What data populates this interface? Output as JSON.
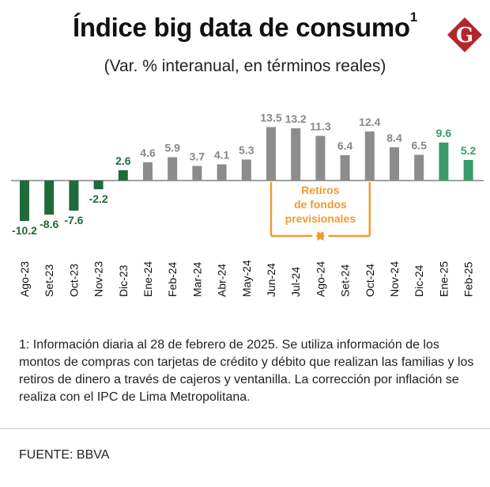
{
  "header": {
    "title": "Índice big data de consumo",
    "title_superscript": "1",
    "subtitle": "(Var. % interanual, en términos reales)",
    "logo_letter": "G"
  },
  "colors": {
    "negative": "#1f6b3a",
    "neutral": "#8c8c8c",
    "highlight": "#3a9a6a",
    "annotation": "#f29a2e",
    "logo": "#b3262d"
  },
  "chart_data": {
    "type": "bar",
    "title": "Índice big data de consumo",
    "subtitle": "(Var. % interanual, en términos reales)",
    "xlabel": "",
    "ylabel": "",
    "ylim": [
      -11,
      14
    ],
    "categories": [
      "Ago-23",
      "Set-23",
      "Oct-23",
      "Nov-23",
      "Dic-23",
      "Ene-24",
      "Feb-24",
      "Mar-24",
      "Abr-24",
      "May-24",
      "Jun-24",
      "Jul-24",
      "Ago-24",
      "Set-24",
      "Oct-24",
      "Nov-24",
      "Dic-24",
      "Ene-25",
      "Feb-25"
    ],
    "values": [
      -10.2,
      -8.6,
      -7.6,
      -2.2,
      2.6,
      4.6,
      5.9,
      3.7,
      4.1,
      5.3,
      13.5,
      13.2,
      11.3,
      6.4,
      12.4,
      8.4,
      6.5,
      9.6,
      5.2
    ],
    "labels": [
      "-10.2",
      "-8.6",
      "-7.6",
      "-2.2",
      "2.6",
      "4.6",
      "5.9",
      "3.7",
      "4.1",
      "5.3",
      "13.5",
      "13.2",
      "11.3",
      "6.4",
      "12.4",
      "8.4",
      "6.5",
      "9.6",
      "5.2"
    ],
    "bar_colors": [
      "negative",
      "negative",
      "negative",
      "negative",
      "negative",
      "neutral",
      "neutral",
      "neutral",
      "neutral",
      "neutral",
      "neutral",
      "neutral",
      "neutral",
      "neutral",
      "neutral",
      "neutral",
      "neutral",
      "highlight",
      "highlight"
    ],
    "annotation": {
      "lines": [
        "Retiros",
        "de fondos",
        "previsionales"
      ],
      "from_category": "Jun-24",
      "to_category": "Oct-24"
    }
  },
  "footnote": "1: Información diaria al 28 de febrero de 2025. Se utiliza información de los montos de compras con tarjetas de crédito y débito que realizan las familias y los retiros de dinero a través de cajeros y ventanilla. La corrección por inflación se realiza con el IPC de Lima Metropolitana.",
  "source": "FUENTE: BBVA"
}
